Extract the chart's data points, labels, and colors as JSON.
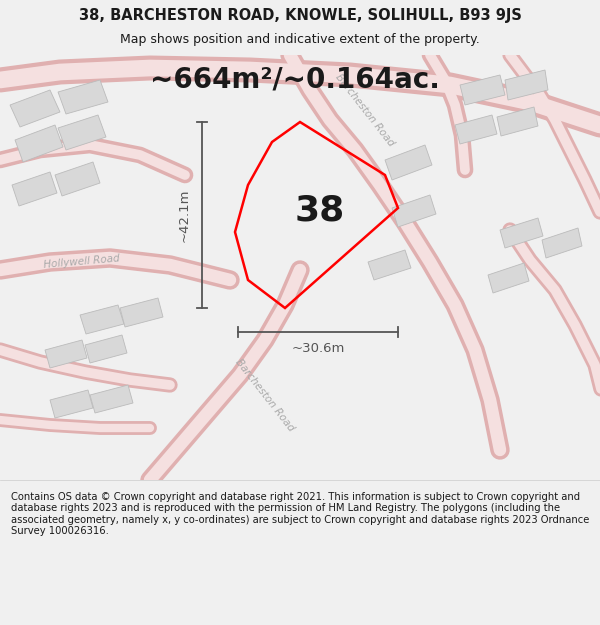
{
  "title": "38, BARCHESTON ROAD, KNOWLE, SOLIHULL, B93 9JS",
  "subtitle": "Map shows position and indicative extent of the property.",
  "area_text": "~664m²/~0.164ac.",
  "number_label": "38",
  "width_label": "~30.6m",
  "height_label": "~42.1m",
  "footer": "Contains OS data © Crown copyright and database right 2021. This information is subject to Crown copyright and database rights 2023 and is reproduced with the permission of HM Land Registry. The polygons (including the associated geometry, namely x, y co-ordinates) are subject to Crown copyright and database rights 2023 Ordnance Survey 100026316.",
  "bg_color": "#f0f0f0",
  "map_bg": "#f7f7f7",
  "plot_color": "#ff0000",
  "plot_lw": 1.8,
  "text_color": "#1a1a1a",
  "dim_color": "#555555",
  "road_fill": "#f5e0e0",
  "road_edge": "#e0b0b0",
  "road_label_color": "#aaaaaa",
  "building_fill": "#d8d8d8",
  "building_edge": "#bbbbbb",
  "title_fontsize": 10.5,
  "subtitle_fontsize": 9,
  "area_fontsize": 20,
  "number_fontsize": 26,
  "dim_fontsize": 9.5,
  "footer_fontsize": 7.2,
  "road_label_fontsize": 7.5
}
